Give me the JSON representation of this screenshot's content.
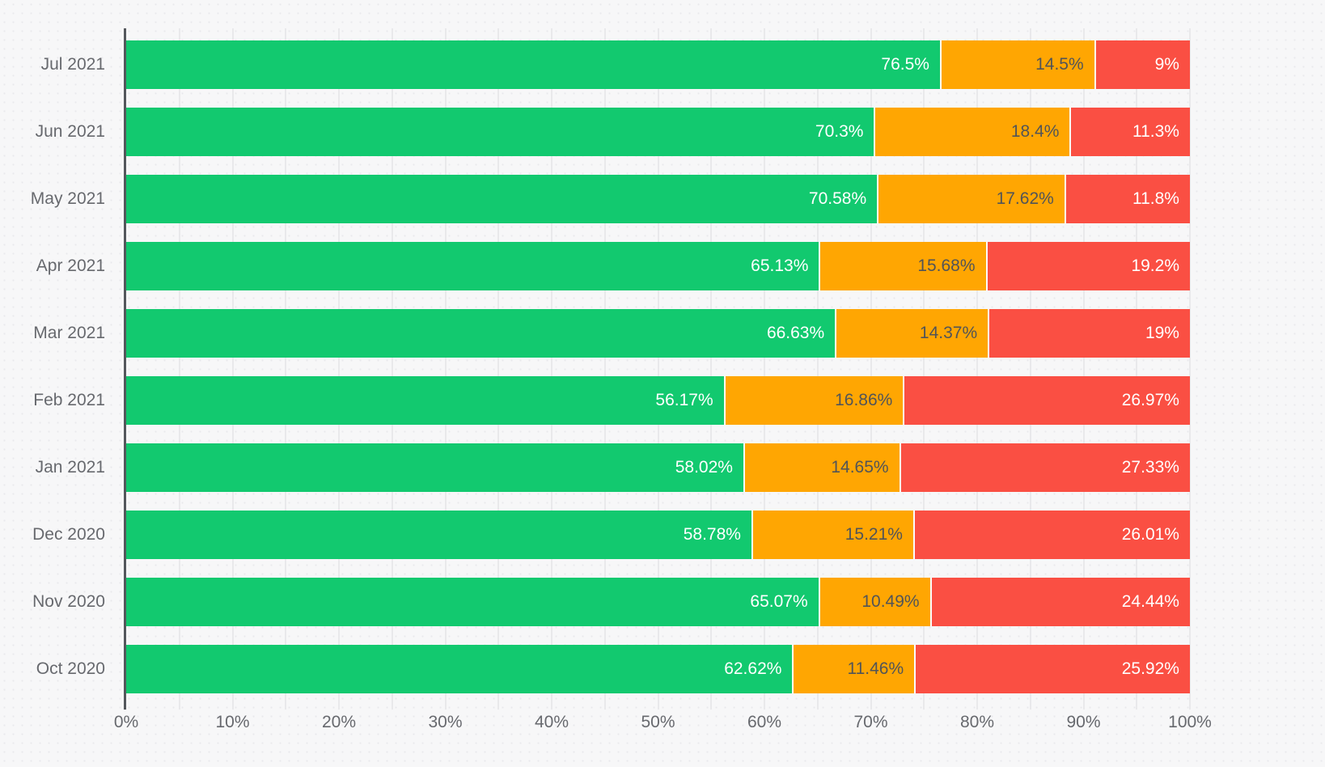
{
  "chart_data": {
    "type": "bar",
    "orientation": "horizontal",
    "stacked": true,
    "title": "",
    "legend": "none",
    "categories": [
      "Jul 2021",
      "Jun 2021",
      "May 2021",
      "Apr 2021",
      "Mar 2021",
      "Feb 2021",
      "Jan 2021",
      "Dec 2020",
      "Nov 2020",
      "Oct 2020"
    ],
    "series": [
      {
        "name": "green",
        "color": "#12c96f",
        "label_color": "#ffffff",
        "values": [
          76.5,
          70.3,
          70.58,
          65.13,
          66.63,
          56.17,
          58.02,
          58.78,
          65.07,
          62.62
        ],
        "labels": [
          "76.5%",
          "70.3%",
          "70.58%",
          "65.13%",
          "66.63%",
          "56.17%",
          "58.02%",
          "58.78%",
          "65.07%",
          "62.62%"
        ]
      },
      {
        "name": "orange",
        "color": "#ffa602",
        "label_color": "#515458",
        "values": [
          14.5,
          18.4,
          17.62,
          15.68,
          14.37,
          16.86,
          14.65,
          15.21,
          10.49,
          11.46
        ],
        "labels": [
          "14.5%",
          "18.4%",
          "17.62%",
          "15.68%",
          "14.37%",
          "16.86%",
          "14.65%",
          "15.21%",
          "10.49%",
          "11.46%"
        ]
      },
      {
        "name": "red",
        "color": "#fa4f43",
        "label_color": "#ffffff",
        "values": [
          9,
          11.3,
          11.8,
          19.2,
          19,
          26.97,
          27.33,
          26.01,
          24.44,
          25.92
        ],
        "labels": [
          "9%",
          "11.3%",
          "11.8%",
          "19.2%",
          "19%",
          "26.97%",
          "27.33%",
          "26.01%",
          "24.44%",
          "25.92%"
        ]
      }
    ],
    "x_axis": {
      "min": 0,
      "max": 100,
      "tick_labels": [
        "0%",
        "10%",
        "20%",
        "30%",
        "40%",
        "50%",
        "60%",
        "70%",
        "80%",
        "90%",
        "100%"
      ],
      "major_tick_step": 10,
      "minor_grid_step": 5,
      "grid": true
    }
  },
  "layout_colors": {
    "background": "#f7f7f8",
    "gridline": "#e9e9eb",
    "axis_line": "#54575c",
    "axis_text": "#67696e"
  }
}
